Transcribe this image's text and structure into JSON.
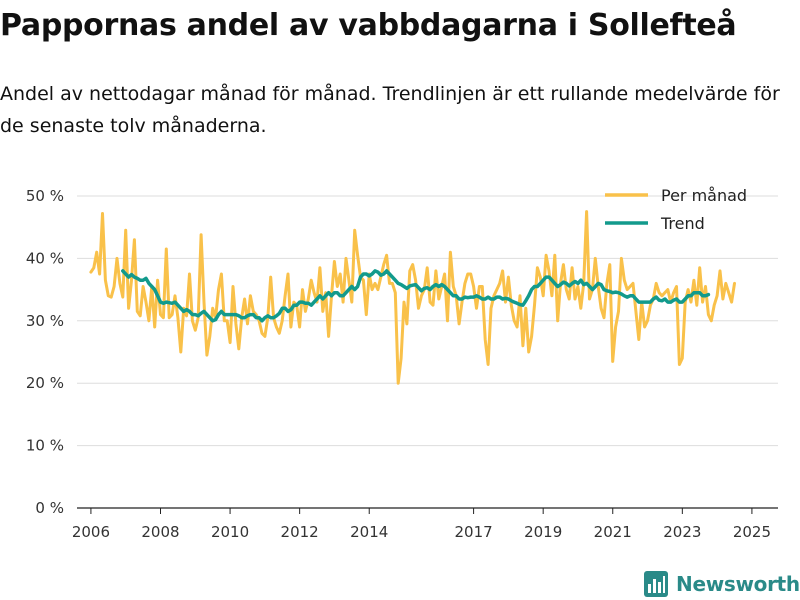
{
  "title": "Pappornas andel av vabbdagarna i Sollefteå",
  "subtitle": "Andel av nettodagar månad för månad. Trendlinjen är ett rullande medelvärde för de senaste tolv månaderna.",
  "brand": {
    "name": "Newsworthy",
    "icon": "bar-chart-logo-icon",
    "color": "#2a8a88"
  },
  "colors": {
    "monthly": "#f9c14a",
    "trend": "#129a8c",
    "grid": "#dddddd",
    "axis": "#222222"
  },
  "chart_data": {
    "type": "line",
    "title": "Pappornas andel av vabbdagarna i Sollefteå",
    "ylabel": "",
    "xlabel": "",
    "ylim": [
      0,
      50
    ],
    "xlim": [
      2005.6,
      2025.75
    ],
    "y_ticks": [
      0,
      10,
      20,
      30,
      40,
      50
    ],
    "y_tick_labels": [
      "0 %",
      "10 %",
      "20 %",
      "30 %",
      "40 %",
      "50 %"
    ],
    "x_ticks": [
      2006,
      2008,
      2010,
      2012,
      2014,
      2017,
      2019,
      2021,
      2023,
      2025
    ],
    "x_tick_labels": [
      "2006",
      "2008",
      "2010",
      "2012",
      "2014",
      "2017",
      "2019",
      "2021",
      "2023",
      "2025"
    ],
    "legend": {
      "position": "top-right",
      "entries": [
        "Per månad",
        "Trend"
      ]
    },
    "series": [
      {
        "name": "Per månad",
        "start": 2006.0,
        "step": 0.08333,
        "values": [
          37.8,
          38.5,
          41,
          37.5,
          47.2,
          36.5,
          34,
          33.8,
          35.5,
          40,
          36,
          33.8,
          44.5,
          32,
          36.5,
          43,
          31.5,
          30.8,
          35.5,
          33,
          30,
          35.5,
          29,
          36.5,
          31,
          30.5,
          41.5,
          30.5,
          31,
          34,
          30.5,
          25,
          32,
          30.8,
          37.5,
          30,
          28.5,
          30.5,
          43.8,
          33,
          24.5,
          27.5,
          32,
          30.5,
          35,
          37.5,
          30,
          30,
          26.5,
          35.5,
          29.5,
          25.5,
          30.5,
          33.5,
          29.5,
          34,
          31.5,
          31,
          30,
          28,
          27.5,
          30.5,
          37,
          30.5,
          29,
          28,
          30,
          34,
          37.5,
          29,
          33,
          32.5,
          29,
          35,
          31.5,
          33.5,
          36.5,
          34.5,
          33,
          38.5,
          31.5,
          34.5,
          27.5,
          34,
          39.5,
          35.5,
          37.5,
          33,
          40,
          36.5,
          33,
          44.5,
          40.5,
          37,
          36.5,
          31,
          37.5,
          35,
          36,
          35,
          37,
          39,
          40.5,
          36,
          36,
          34.5,
          20,
          24,
          33,
          29.5,
          38,
          39,
          36.5,
          32,
          34,
          35,
          38.5,
          33,
          32.5,
          38,
          33.5,
          35.5,
          37.5,
          30,
          41,
          35.5,
          34,
          29.5,
          33,
          36,
          37.5,
          37.5,
          35.5,
          32,
          35.5,
          35.5,
          27,
          23,
          32,
          34,
          35,
          36,
          38,
          33,
          37,
          32.5,
          30,
          29,
          34,
          26,
          32,
          25,
          27.5,
          32.5,
          38.5,
          37,
          34,
          40.5,
          38,
          34,
          40.5,
          30,
          36,
          39,
          35,
          33.5,
          38.5,
          33.5,
          35.5,
          32,
          36,
          47.5,
          33.5,
          35,
          40,
          35.5,
          32,
          30.5,
          36,
          39,
          23.5,
          29,
          31.5,
          40,
          36.5,
          35,
          35.5,
          36,
          31.5,
          27,
          33,
          29,
          30,
          32.5,
          33.5,
          36,
          34.5,
          34,
          34.5,
          35,
          33,
          34.5,
          35.5,
          23,
          24,
          33,
          35,
          33,
          36.5,
          32.5,
          38.5,
          33,
          35.5,
          31,
          30,
          32.5,
          34,
          38,
          33.5,
          36,
          34.5,
          33,
          36
        ]
      },
      {
        "name": "Trend",
        "start": 2006.917,
        "step": 0.08333,
        "values": [
          38,
          37.5,
          37,
          37.4,
          37,
          36.8,
          36.5,
          36.5,
          36.8,
          36,
          35.5,
          35,
          34,
          33,
          32.8,
          33,
          32.9,
          32.8,
          33,
          32.5,
          32,
          31.5,
          31.8,
          31.5,
          31,
          31,
          30.8,
          31.2,
          31.5,
          31,
          30.5,
          30,
          30.2,
          31,
          31.5,
          31,
          31,
          31,
          31,
          31,
          30.8,
          30.5,
          30.5,
          30.8,
          31,
          31,
          30.5,
          30.5,
          30,
          30.5,
          30.8,
          30.5,
          30.5,
          30.8,
          31.2,
          32,
          32,
          31.5,
          31.8,
          32.5,
          32.5,
          33,
          33,
          32.8,
          32.8,
          32.5,
          33,
          33.5,
          34,
          33.5,
          34,
          34.5,
          34,
          34.5,
          34.5,
          34,
          34,
          34.5,
          35,
          35.5,
          35,
          35.5,
          37,
          37.5,
          37.5,
          37.2,
          37.5,
          38,
          37.8,
          37.3,
          37.5,
          38,
          37.5,
          37,
          36.5,
          36,
          35.8,
          35.5,
          35.2,
          35.6,
          35.7,
          35.8,
          35.3,
          34.8,
          35.2,
          35.3,
          35,
          35.5,
          35.8,
          35.5,
          35.8,
          35.5,
          35,
          34.5,
          34,
          34,
          33.5,
          33.5,
          33.8,
          33.7,
          33.8,
          33.8,
          34,
          33.8,
          33.5,
          33.5,
          33.8,
          33.5,
          33.5,
          33.8,
          33.8,
          33.5,
          33.6,
          33.5,
          33.2,
          33,
          32.8,
          32.6,
          32.5,
          33.2,
          34,
          35,
          35.5,
          35.5,
          36,
          36.5,
          37,
          37,
          36.5,
          36,
          35.5,
          35.8,
          36.2,
          36,
          35.6,
          36,
          36.3,
          36,
          36.5,
          35.8,
          36,
          35.5,
          35,
          35.5,
          36,
          35.8,
          35,
          34.8,
          34.7,
          34.5,
          34.6,
          34.5,
          34.3,
          34,
          33.8,
          34,
          34,
          33.5,
          33,
          33,
          33,
          33,
          33,
          33.5,
          33.8,
          33.3,
          33.2,
          33.5,
          33,
          33,
          33.3,
          33.5,
          33,
          33,
          33.5,
          34,
          34,
          34.5,
          34.5,
          34.5,
          34,
          34,
          34.2
        ]
      }
    ]
  }
}
